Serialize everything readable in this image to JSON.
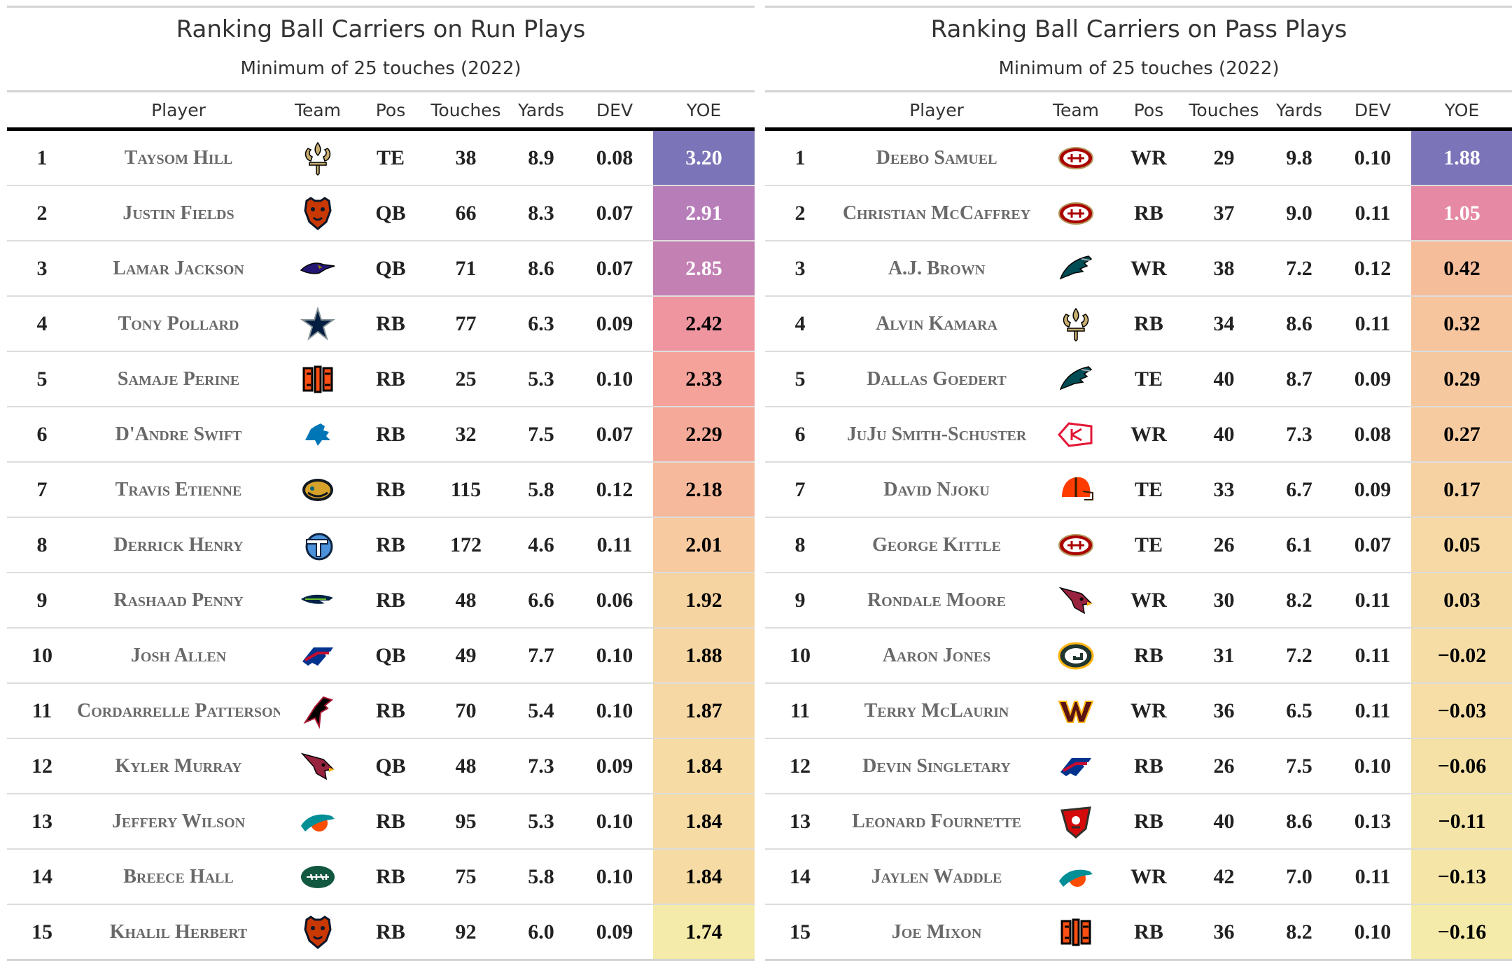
{
  "panels": [
    {
      "title": "Ranking Ball Carriers on Run Plays",
      "subtitle": "Minimum of 25 touches (2022)",
      "columns": [
        "",
        "Player",
        "Team",
        "Pos",
        "Touches",
        "Yards",
        "DEV",
        "YOE"
      ],
      "rows": [
        {
          "rank": "1",
          "player": "Taysom Hill",
          "team": "saints-logo",
          "pos": "TE",
          "touches": "38",
          "yards": "8.9",
          "dev": "0.08",
          "yoe": "3.20",
          "color": "#7b74b8"
        },
        {
          "rank": "2",
          "player": "Justin Fields",
          "team": "bears-logo",
          "pos": "QB",
          "touches": "66",
          "yards": "8.3",
          "dev": "0.07",
          "yoe": "2.91",
          "color": "#b77db9"
        },
        {
          "rank": "3",
          "player": "Lamar Jackson",
          "team": "ravens-logo",
          "pos": "QB",
          "touches": "71",
          "yards": "8.6",
          "dev": "0.07",
          "yoe": "2.85",
          "color": "#c380b3"
        },
        {
          "rank": "4",
          "player": "Tony Pollard",
          "team": "cowboys-logo",
          "pos": "RB",
          "touches": "77",
          "yards": "6.3",
          "dev": "0.09",
          "yoe": "2.42",
          "color": "#ef95a0"
        },
        {
          "rank": "5",
          "player": "Samaje Perine",
          "team": "bengals-logo",
          "pos": "RB",
          "touches": "25",
          "yards": "5.3",
          "dev": "0.10",
          "yoe": "2.33",
          "color": "#f4a29a"
        },
        {
          "rank": "6",
          "player": "D'Andre Swift",
          "team": "lions-logo",
          "pos": "RB",
          "touches": "32",
          "yards": "7.5",
          "dev": "0.07",
          "yoe": "2.29",
          "color": "#f5aa99"
        },
        {
          "rank": "7",
          "player": "Travis Etienne",
          "team": "jaguars-logo",
          "pos": "RB",
          "touches": "115",
          "yards": "5.8",
          "dev": "0.12",
          "yoe": "2.18",
          "color": "#f6b99b"
        },
        {
          "rank": "8",
          "player": "Derrick Henry",
          "team": "titans-logo",
          "pos": "RB",
          "touches": "172",
          "yards": "4.6",
          "dev": "0.11",
          "yoe": "2.01",
          "color": "#f7caa0"
        },
        {
          "rank": "9",
          "player": "Rashaad Penny",
          "team": "seahawks-logo",
          "pos": "RB",
          "touches": "48",
          "yards": "6.6",
          "dev": "0.06",
          "yoe": "1.92",
          "color": "#f6d4a2"
        },
        {
          "rank": "10",
          "player": "Josh Allen",
          "team": "bills-logo",
          "pos": "QB",
          "touches": "49",
          "yards": "7.7",
          "dev": "0.10",
          "yoe": "1.88",
          "color": "#f6d7a3"
        },
        {
          "rank": "11",
          "player": "Cordarrelle Patterson",
          "team": "falcons-logo",
          "pos": "RB",
          "touches": "70",
          "yards": "5.4",
          "dev": "0.10",
          "yoe": "1.87",
          "color": "#f6d8a4"
        },
        {
          "rank": "12",
          "player": "Kyler Murray",
          "team": "cardinals-logo",
          "pos": "QB",
          "touches": "48",
          "yards": "7.3",
          "dev": "0.09",
          "yoe": "1.84",
          "color": "#f6dba5"
        },
        {
          "rank": "13",
          "player": "Jeffery Wilson",
          "team": "dolphins-logo",
          "pos": "RB",
          "touches": "95",
          "yards": "5.3",
          "dev": "0.10",
          "yoe": "1.84",
          "color": "#f6dba5"
        },
        {
          "rank": "14",
          "player": "Breece Hall",
          "team": "jets-logo",
          "pos": "RB",
          "touches": "75",
          "yards": "5.8",
          "dev": "0.10",
          "yoe": "1.84",
          "color": "#f6dba5"
        },
        {
          "rank": "15",
          "player": "Khalil Herbert",
          "team": "bears-logo",
          "pos": "RB",
          "touches": "92",
          "yards": "6.0",
          "dev": "0.09",
          "yoe": "1.74",
          "color": "#f4eaa9"
        }
      ]
    },
    {
      "title": "Ranking Ball Carriers on Pass Plays",
      "subtitle": "Minimum of 25 touches (2022)",
      "columns": [
        "",
        "Player",
        "Team",
        "Pos",
        "Touches",
        "Yards",
        "DEV",
        "YOE"
      ],
      "rows": [
        {
          "rank": "1",
          "player": "Deebo Samuel",
          "team": "49ers-logo",
          "pos": "WR",
          "touches": "29",
          "yards": "9.8",
          "dev": "0.10",
          "yoe": "1.88",
          "color": "#7b74b8"
        },
        {
          "rank": "2",
          "player": "Christian McCaffrey",
          "team": "49ers-logo",
          "pos": "RB",
          "touches": "37",
          "yards": "9.0",
          "dev": "0.11",
          "yoe": "1.05",
          "color": "#e589a4"
        },
        {
          "rank": "3",
          "player": "A.J. Brown",
          "team": "eagles-logo",
          "pos": "WR",
          "touches": "38",
          "yards": "7.2",
          "dev": "0.12",
          "yoe": "0.42",
          "color": "#f6bd9b"
        },
        {
          "rank": "4",
          "player": "Alvin Kamara",
          "team": "saints-logo",
          "pos": "RB",
          "touches": "34",
          "yards": "8.6",
          "dev": "0.11",
          "yoe": "0.32",
          "color": "#f6c49d"
        },
        {
          "rank": "5",
          "player": "Dallas Goedert",
          "team": "eagles-logo",
          "pos": "TE",
          "touches": "40",
          "yards": "8.7",
          "dev": "0.09",
          "yoe": "0.29",
          "color": "#f6c89f"
        },
        {
          "rank": "6",
          "player": "JuJu Smith-Schuster",
          "team": "chiefs-logo",
          "pos": "WR",
          "touches": "40",
          "yards": "7.3",
          "dev": "0.08",
          "yoe": "0.27",
          "color": "#f6cba0"
        },
        {
          "rank": "7",
          "player": "David Njoku",
          "team": "browns-logo",
          "pos": "TE",
          "touches": "33",
          "yards": "6.7",
          "dev": "0.09",
          "yoe": "0.17",
          "color": "#f6d2a2"
        },
        {
          "rank": "8",
          "player": "George Kittle",
          "team": "49ers-logo",
          "pos": "TE",
          "touches": "26",
          "yards": "6.1",
          "dev": "0.07",
          "yoe": "0.05",
          "color": "#f6d9a4"
        },
        {
          "rank": "9",
          "player": "Rondale Moore",
          "team": "cardinals-logo",
          "pos": "WR",
          "touches": "30",
          "yards": "8.2",
          "dev": "0.11",
          "yoe": "0.03",
          "color": "#f6daa4"
        },
        {
          "rank": "10",
          "player": "Aaron Jones",
          "team": "packers-logo",
          "pos": "RB",
          "touches": "31",
          "yards": "7.2",
          "dev": "0.11",
          "yoe": "−0.02",
          "color": "#f6dda5"
        },
        {
          "rank": "11",
          "player": "Terry McLaurin",
          "team": "commanders-logo",
          "pos": "WR",
          "touches": "36",
          "yards": "6.5",
          "dev": "0.11",
          "yoe": "−0.03",
          "color": "#f6dea6"
        },
        {
          "rank": "12",
          "player": "Devin Singletary",
          "team": "bills-logo",
          "pos": "RB",
          "touches": "26",
          "yards": "7.5",
          "dev": "0.10",
          "yoe": "−0.06",
          "color": "#f5e0a6"
        },
        {
          "rank": "13",
          "player": "Leonard Fournette",
          "team": "buccaneers-logo",
          "pos": "RB",
          "touches": "40",
          "yards": "8.6",
          "dev": "0.13",
          "yoe": "−0.11",
          "color": "#f5e4a7"
        },
        {
          "rank": "14",
          "player": "Jaylen Waddle",
          "team": "dolphins-logo",
          "pos": "WR",
          "touches": "42",
          "yards": "7.0",
          "dev": "0.11",
          "yoe": "−0.13",
          "color": "#f5e6a8"
        },
        {
          "rank": "15",
          "player": "Joe Mixon",
          "team": "bengals-logo",
          "pos": "RB",
          "touches": "36",
          "yards": "8.2",
          "dev": "0.10",
          "yoe": "−0.16",
          "color": "#f4eaa9"
        }
      ]
    }
  ]
}
